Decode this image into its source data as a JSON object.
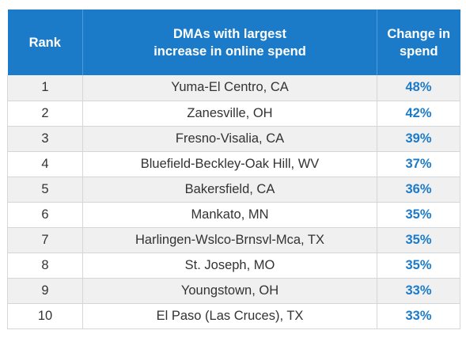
{
  "table": {
    "headers": {
      "rank": "Rank",
      "dma_line1": "DMAs with largest",
      "dma_line2": "increase in online spend",
      "change_line1": "Change in",
      "change_line2": "spend"
    },
    "rows": [
      {
        "rank": "1",
        "dma": "Yuma-El Centro, CA",
        "change": "48%"
      },
      {
        "rank": "2",
        "dma": "Zanesville, OH",
        "change": "42%"
      },
      {
        "rank": "3",
        "dma": "Fresno-Visalia, CA",
        "change": "39%"
      },
      {
        "rank": "4",
        "dma": "Bluefield-Beckley-Oak Hill, WV",
        "change": "37%"
      },
      {
        "rank": "5",
        "dma": "Bakersfield, CA",
        "change": "36%"
      },
      {
        "rank": "6",
        "dma": "Mankato, MN",
        "change": "35%"
      },
      {
        "rank": "7",
        "dma": "Harlingen-Wslco-Brnsvl-Mca, TX",
        "change": "35%"
      },
      {
        "rank": "8",
        "dma": "St. Joseph, MO",
        "change": "35%"
      },
      {
        "rank": "9",
        "dma": "Youngstown, OH",
        "change": "33%"
      },
      {
        "rank": "10",
        "dma": "El Paso (Las Cruces), TX",
        "change": "33%"
      }
    ]
  },
  "colors": {
    "header_bg": "#1c7bc8",
    "accent_text": "#1c7bc8",
    "stripe": "#f0f0f0"
  }
}
